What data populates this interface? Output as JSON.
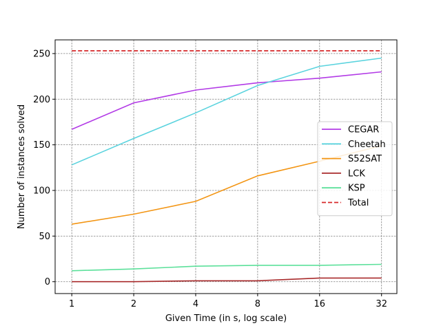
{
  "chart_data": {
    "type": "line",
    "title": "",
    "xlabel": "Given Time (in s, log scale)",
    "ylabel": "Number of instances solved",
    "x_scale": "log2",
    "x": [
      1,
      2,
      4,
      8,
      16,
      32
    ],
    "x_tick_labels": [
      "1",
      "2",
      "4",
      "8",
      "16",
      "32"
    ],
    "xlim": [
      0.83,
      38
    ],
    "ylim": [
      -13,
      265
    ],
    "y_ticks": [
      0,
      50,
      100,
      150,
      200,
      250
    ],
    "y_tick_labels": [
      "0",
      "50",
      "100",
      "150",
      "200",
      "250"
    ],
    "grid": true,
    "legend_position": "center-right",
    "series": [
      {
        "name": "CEGAR",
        "color": "#b23ae6",
        "dash": "solid",
        "values": [
          167,
          196,
          210,
          218,
          223,
          230
        ]
      },
      {
        "name": "Cheetah",
        "color": "#5ad3de",
        "dash": "solid",
        "values": [
          128,
          157,
          185,
          215,
          236,
          245
        ]
      },
      {
        "name": "S52SAT",
        "color": "#f39513",
        "dash": "solid",
        "values": [
          63,
          74,
          88,
          116,
          132,
          149
        ]
      },
      {
        "name": "LCK",
        "color": "#a8292a",
        "dash": "solid",
        "values": [
          0,
          0,
          1,
          1,
          4,
          4
        ]
      },
      {
        "name": "KSP",
        "color": "#5be09a",
        "dash": "solid",
        "values": [
          12,
          14,
          17,
          18,
          18,
          19
        ]
      },
      {
        "name": "Total",
        "color": "#d62728",
        "dash": "dashed",
        "values": [
          253,
          253,
          253,
          253,
          253,
          253
        ]
      }
    ]
  }
}
